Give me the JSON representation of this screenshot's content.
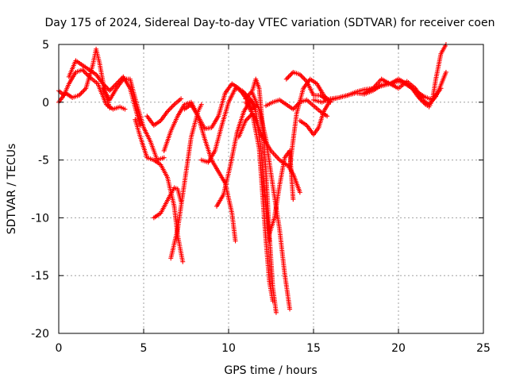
{
  "chart_data": {
    "type": "scatter",
    "title": "Day 175 of 2024, Sidereal Day-to-day VTEC variation (SDTVAR) for receiver coen",
    "xlabel": "GPS time / hours",
    "ylabel": "SDTVAR / TECUs",
    "xlim": [
      0,
      25
    ],
    "ylim": [
      -20,
      5
    ],
    "x_ticks": [
      0,
      5,
      10,
      15,
      20,
      25
    ],
    "y_ticks": [
      5,
      0,
      -5,
      -10,
      -15,
      -20
    ],
    "x_tick_labels": [
      "0",
      "5",
      "10",
      "15",
      "20",
      "25"
    ],
    "y_tick_labels": [
      "5",
      "0",
      "-5",
      "-10",
      "-15",
      "-20"
    ],
    "grid": true,
    "marker": "+",
    "color": "#ff0000",
    "series": [
      {
        "name": "s1",
        "x": [
          0.0,
          0.4,
          0.8,
          1.2,
          1.6,
          2.0,
          2.2,
          2.4,
          2.7,
          3.0
        ],
        "y": [
          0.0,
          0.8,
          0.4,
          0.6,
          1.2,
          3.2,
          4.6,
          3.4,
          1.0,
          -0.5
        ]
      },
      {
        "name": "s2",
        "x": [
          0.6,
          1.0,
          1.4,
          1.8,
          2.2,
          2.6,
          3.0,
          3.4,
          3.8,
          4.2,
          4.6,
          4.8
        ],
        "y": [
          2.2,
          3.6,
          3.2,
          2.8,
          2.4,
          1.6,
          1.0,
          1.6,
          2.2,
          1.2,
          -1.0,
          -2.0
        ]
      },
      {
        "name": "s3",
        "x": [
          0.0,
          0.3,
          0.6,
          1.0,
          1.4,
          1.8,
          2.3,
          2.8,
          3.2,
          3.6,
          3.9
        ],
        "y": [
          1.0,
          0.6,
          1.6,
          2.6,
          2.8,
          2.2,
          1.6,
          -0.2,
          -0.6,
          -0.4,
          -0.6
        ]
      },
      {
        "name": "s4",
        "x": [
          2.6,
          3.0,
          3.4,
          3.8,
          4.2,
          4.6,
          5.0,
          5.4,
          5.8,
          6.2
        ],
        "y": [
          1.2,
          0.2,
          1.2,
          2.0,
          2.0,
          -0.2,
          -2.2,
          -3.4,
          -5.0,
          -4.8
        ]
      },
      {
        "name": "s5",
        "x": [
          4.5,
          4.8,
          5.2,
          5.6,
          6.0,
          6.4,
          6.8,
          7.0,
          7.3
        ],
        "y": [
          -1.5,
          -3.0,
          -4.8,
          -5.0,
          -5.4,
          -6.5,
          -9.0,
          -11.5,
          -13.8
        ]
      },
      {
        "name": "s6",
        "x": [
          5.2,
          5.6,
          6.0,
          6.4,
          6.8,
          7.2
        ],
        "y": [
          -1.2,
          -2.0,
          -1.6,
          -0.8,
          -0.2,
          0.3
        ]
      },
      {
        "name": "s7",
        "x": [
          5.6,
          6.0,
          6.4,
          6.8,
          7.0,
          7.2
        ],
        "y": [
          -10.0,
          -9.6,
          -8.5,
          -7.4,
          -7.5,
          -8.6
        ]
      },
      {
        "name": "s8",
        "x": [
          6.6,
          7.0,
          7.4,
          7.8,
          8.2,
          8.4
        ],
        "y": [
          -13.5,
          -11.0,
          -7.0,
          -3.0,
          -0.8,
          -0.2
        ]
      },
      {
        "name": "s9",
        "x": [
          6.2,
          6.6,
          7.0,
          7.4,
          7.8,
          8.2,
          8.6,
          9.0,
          9.4,
          9.8,
          10.2,
          10.4
        ],
        "y": [
          -4.2,
          -2.5,
          -1.2,
          -0.2,
          0.0,
          -1.2,
          -3.2,
          -5.0,
          -6.0,
          -7.0,
          -9.6,
          -12.0
        ]
      },
      {
        "name": "s10",
        "x": [
          7.4,
          7.8,
          8.2,
          8.6,
          9.0,
          9.4,
          9.8,
          10.2,
          10.6,
          11.0,
          11.4
        ],
        "y": [
          -0.6,
          -0.2,
          -1.2,
          -2.3,
          -2.2,
          -1.2,
          0.8,
          1.6,
          1.2,
          0.4,
          -0.6
        ]
      },
      {
        "name": "s11",
        "x": [
          8.4,
          8.8,
          9.2,
          9.6,
          10.0,
          10.4,
          10.8,
          11.2,
          11.6
        ],
        "y": [
          -5.0,
          -5.2,
          -4.2,
          -2.0,
          0.0,
          1.2,
          1.0,
          0.4,
          -0.4
        ]
      },
      {
        "name": "s12",
        "x": [
          9.3,
          9.7,
          10.1,
          10.5,
          10.9,
          11.3,
          11.6,
          11.9,
          12.2,
          12.4
        ],
        "y": [
          -9.0,
          -8.0,
          -5.5,
          -2.6,
          -0.8,
          0.2,
          -0.8,
          -4.0,
          -9.0,
          -12.0
        ]
      },
      {
        "name": "s13",
        "x": [
          10.6,
          11.0,
          11.4,
          11.8,
          12.0,
          12.2,
          12.4,
          12.6
        ],
        "y": [
          -3.0,
          -1.6,
          -1.0,
          -4.0,
          -8.0,
          -12.0,
          -15.5,
          -17.2
        ]
      },
      {
        "name": "s14",
        "x": [
          11.0,
          11.4,
          11.6,
          11.8,
          12.0,
          12.2,
          12.4,
          12.6,
          12.8
        ],
        "y": [
          0.3,
          1.0,
          2.0,
          1.2,
          -2.0,
          -6.0,
          -11.5,
          -16.0,
          -18.2
        ]
      },
      {
        "name": "s15",
        "x": [
          11.0,
          11.5,
          12.0,
          12.5,
          13.0,
          13.5,
          13.8,
          14.0,
          14.2
        ],
        "y": [
          0.0,
          -1.2,
          -3.0,
          -4.2,
          -5.0,
          -5.5,
          -6.2,
          -7.0,
          -7.8
        ]
      },
      {
        "name": "s16",
        "x": [
          12.2,
          12.6,
          13.0,
          13.4,
          13.8,
          14.2,
          14.6,
          15.0,
          15.4,
          15.8
        ],
        "y": [
          -0.3,
          0.0,
          0.2,
          -0.2,
          -0.6,
          0.0,
          0.2,
          -0.3,
          -0.8,
          -1.2
        ]
      },
      {
        "name": "s17",
        "x": [
          11.4,
          11.8,
          12.2,
          12.6,
          13.0,
          13.3,
          13.6
        ],
        "y": [
          0.8,
          -0.6,
          -3.2,
          -7.2,
          -11.0,
          -14.8,
          -17.9
        ]
      },
      {
        "name": "s18",
        "x": [
          12.4,
          12.7,
          13.0,
          13.3,
          13.6,
          13.8
        ],
        "y": [
          -11.4,
          -10.0,
          -7.2,
          -4.8,
          -4.2,
          -8.4
        ]
      },
      {
        "name": "s19",
        "x": [
          13.6,
          14.0,
          14.4,
          14.8,
          15.2,
          15.6,
          16.0
        ],
        "y": [
          -5.6,
          -1.0,
          1.2,
          2.0,
          1.6,
          0.6,
          0.0
        ]
      },
      {
        "name": "s20",
        "x": [
          13.4,
          13.8,
          14.2,
          14.6,
          15.0,
          15.4,
          15.8
        ],
        "y": [
          2.0,
          2.6,
          2.4,
          1.8,
          0.6,
          0.6,
          0.2
        ]
      },
      {
        "name": "s21",
        "x": [
          14.2,
          14.6,
          15.0,
          15.3,
          15.6,
          16.0,
          16.5,
          17.0,
          17.5,
          18.0,
          18.5,
          19.0,
          19.5,
          20.0,
          20.5,
          21.0,
          21.5,
          22.0,
          22.5
        ],
        "y": [
          -1.6,
          -2.0,
          -2.8,
          -2.2,
          -0.8,
          0.2,
          0.4,
          0.6,
          0.9,
          1.1,
          1.2,
          1.4,
          1.6,
          1.8,
          1.6,
          1.0,
          0.5,
          0.2,
          1.2
        ]
      },
      {
        "name": "s22",
        "x": [
          15.0,
          15.5,
          16.0,
          16.5,
          17.0,
          17.5,
          18.0,
          18.5,
          19.0,
          19.5,
          20.0,
          20.5,
          21.0,
          21.5
        ],
        "y": [
          0.2,
          0.0,
          0.3,
          0.4,
          0.6,
          0.8,
          0.7,
          1.0,
          1.5,
          1.6,
          2.0,
          1.6,
          1.0,
          0.4
        ]
      },
      {
        "name": "s23",
        "x": [
          18.0,
          18.5,
          19.0,
          19.5,
          20.0,
          20.5,
          21.0,
          21.4,
          21.8,
          22.2,
          22.5,
          22.8
        ],
        "y": [
          0.8,
          1.2,
          2.0,
          1.6,
          1.2,
          1.8,
          1.2,
          0.2,
          -0.2,
          0.5,
          1.5,
          2.6
        ]
      },
      {
        "name": "s24",
        "x": [
          20.4,
          20.8,
          21.2,
          21.6,
          21.8,
          22.0,
          22.2,
          22.5,
          22.8
        ],
        "y": [
          1.6,
          1.2,
          0.4,
          -0.2,
          -0.4,
          0.2,
          2.0,
          4.2,
          5.0
        ]
      }
    ]
  }
}
